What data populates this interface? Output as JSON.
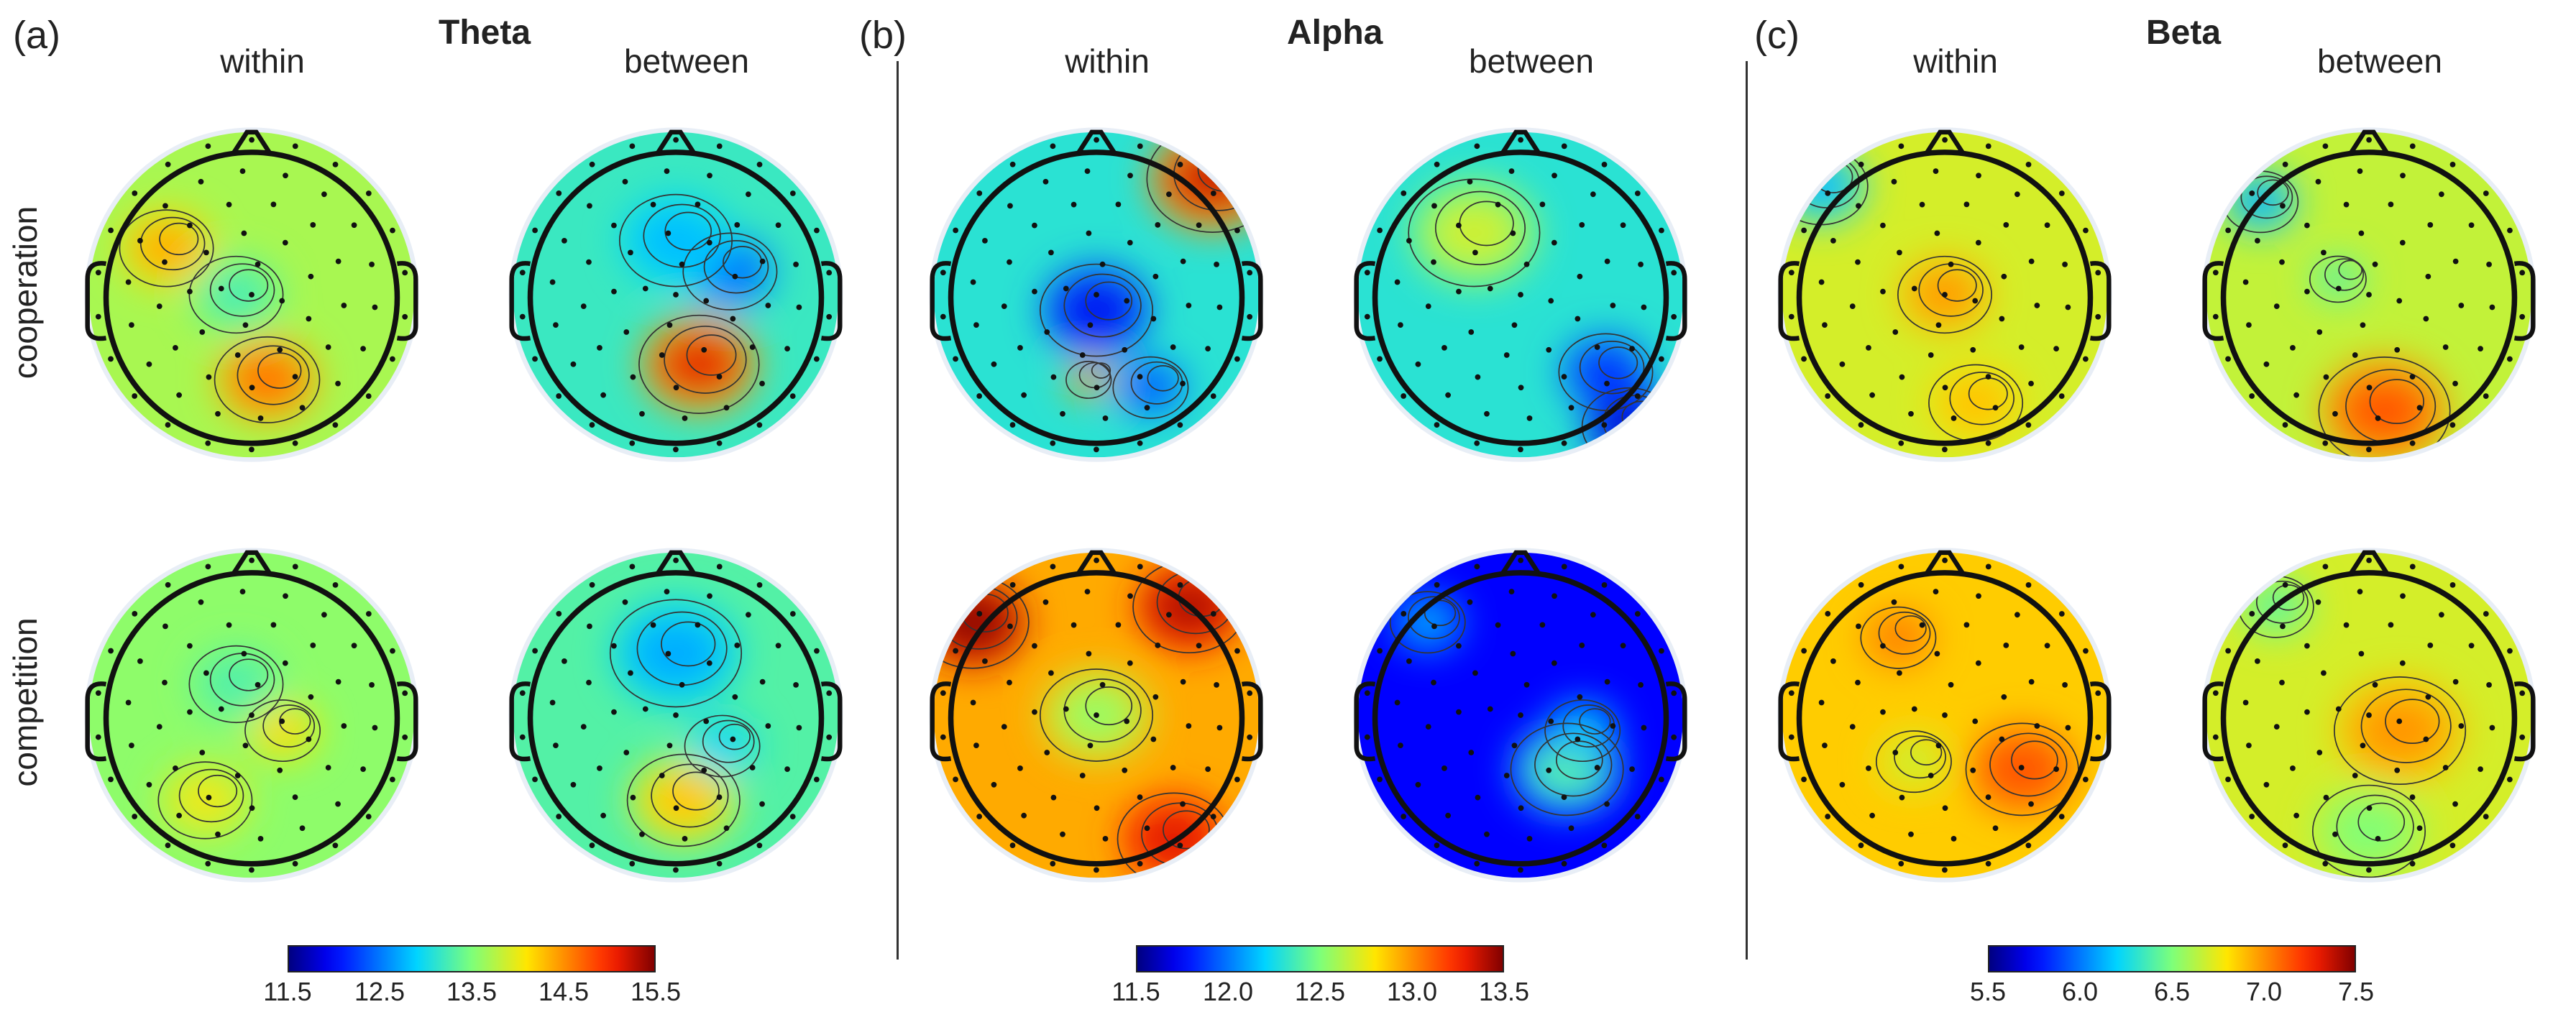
{
  "panels": [
    {
      "label": "(a)",
      "band": "Theta",
      "columns": [
        "within",
        "between"
      ],
      "colorbar": {
        "ticks": [
          "11.5",
          "12.5",
          "13.5",
          "14.5",
          "15.5"
        ],
        "range": [
          11.5,
          15.5
        ]
      },
      "maps": [
        {
          "condition": "cooperation",
          "type": "within",
          "base": 0.55,
          "blobs": [
            [
              -0.55,
              -0.3,
              0.25,
              0.18
            ],
            [
              0.1,
              0.55,
              0.28,
              0.25
            ],
            [
              -0.1,
              0.0,
              0.25,
              -0.12
            ]
          ]
        },
        {
          "condition": "cooperation",
          "type": "between",
          "base": 0.42,
          "blobs": [
            [
              0.15,
              0.45,
              0.32,
              0.5
            ],
            [
              0.35,
              -0.15,
              0.25,
              -0.2
            ],
            [
              0.0,
              -0.35,
              0.3,
              -0.1
            ]
          ]
        },
        {
          "condition": "competition",
          "type": "within",
          "base": 0.52,
          "blobs": [
            [
              0.2,
              0.1,
              0.2,
              0.15
            ],
            [
              -0.3,
              0.55,
              0.25,
              0.12
            ],
            [
              -0.1,
              -0.2,
              0.25,
              -0.08
            ]
          ]
        },
        {
          "condition": "competition",
          "type": "between",
          "base": 0.45,
          "blobs": [
            [
              0.0,
              -0.4,
              0.35,
              -0.15
            ],
            [
              0.05,
              0.55,
              0.3,
              0.25
            ],
            [
              0.3,
              0.2,
              0.2,
              -0.1
            ]
          ]
        }
      ]
    },
    {
      "label": "(b)",
      "band": "Alpha",
      "columns": [
        "within",
        "between"
      ],
      "colorbar": {
        "ticks": [
          "11.5",
          "12.0",
          "12.5",
          "13.0",
          "13.5"
        ],
        "range": [
          11.5,
          13.5
        ]
      },
      "maps": [
        {
          "condition": "cooperation",
          "type": "within",
          "base": 0.4,
          "blobs": [
            [
              0.0,
              0.1,
              0.3,
              -0.3
            ],
            [
              0.75,
              -0.75,
              0.35,
              0.55
            ],
            [
              -0.05,
              0.55,
              0.12,
              0.45
            ],
            [
              0.35,
              0.6,
              0.2,
              -0.2
            ]
          ]
        },
        {
          "condition": "cooperation",
          "type": "between",
          "base": 0.4,
          "blobs": [
            [
              0.55,
              0.5,
              0.25,
              -0.25
            ],
            [
              -0.3,
              -0.4,
              0.35,
              0.2
            ],
            [
              0.7,
              0.85,
              0.25,
              -0.35
            ]
          ]
        },
        {
          "condition": "competition",
          "type": "within",
          "base": 0.72,
          "blobs": [
            [
              0.0,
              0.0,
              0.3,
              -0.2
            ],
            [
              -0.8,
              -0.6,
              0.3,
              0.3
            ],
            [
              0.6,
              -0.7,
              0.3,
              0.25
            ],
            [
              0.5,
              0.8,
              0.3,
              0.2
            ]
          ]
        },
        {
          "condition": "competition",
          "type": "between",
          "base": 0.12,
          "blobs": [
            [
              0.3,
              0.35,
              0.3,
              0.35
            ],
            [
              0.4,
              0.1,
              0.2,
              0.25
            ],
            [
              -0.6,
              -0.6,
              0.2,
              0.2
            ]
          ]
        }
      ]
    },
    {
      "label": "(c)",
      "band": "Beta",
      "columns": [
        "within",
        "between"
      ],
      "colorbar": {
        "ticks": [
          "5.5",
          "6.0",
          "6.5",
          "7.0",
          "7.5"
        ],
        "range": [
          5.5,
          7.5
        ]
      },
      "maps": [
        {
          "condition": "cooperation",
          "type": "within",
          "base": 0.6,
          "blobs": [
            [
              0.0,
              0.0,
              0.25,
              0.15
            ],
            [
              -0.8,
              -0.7,
              0.25,
              -0.3
            ],
            [
              0.2,
              0.7,
              0.25,
              0.1
            ]
          ]
        },
        {
          "condition": "cooperation",
          "type": "between",
          "base": 0.58,
          "blobs": [
            [
              0.1,
              0.75,
              0.35,
              0.25
            ],
            [
              -0.7,
              -0.6,
              0.2,
              -0.3
            ],
            [
              -0.2,
              -0.1,
              0.15,
              -0.15
            ]
          ]
        },
        {
          "condition": "competition",
          "type": "within",
          "base": 0.68,
          "blobs": [
            [
              0.5,
              0.35,
              0.3,
              0.15
            ],
            [
              -0.3,
              -0.5,
              0.2,
              0.1
            ],
            [
              -0.2,
              0.3,
              0.2,
              -0.1
            ]
          ]
        },
        {
          "condition": "competition",
          "type": "between",
          "base": 0.6,
          "blobs": [
            [
              0.2,
              0.1,
              0.35,
              0.15
            ],
            [
              0.0,
              0.75,
              0.3,
              -0.1
            ],
            [
              -0.6,
              -0.7,
              0.2,
              -0.15
            ]
          ]
        }
      ]
    }
  ],
  "rows": [
    "cooperation",
    "competition"
  ]
}
